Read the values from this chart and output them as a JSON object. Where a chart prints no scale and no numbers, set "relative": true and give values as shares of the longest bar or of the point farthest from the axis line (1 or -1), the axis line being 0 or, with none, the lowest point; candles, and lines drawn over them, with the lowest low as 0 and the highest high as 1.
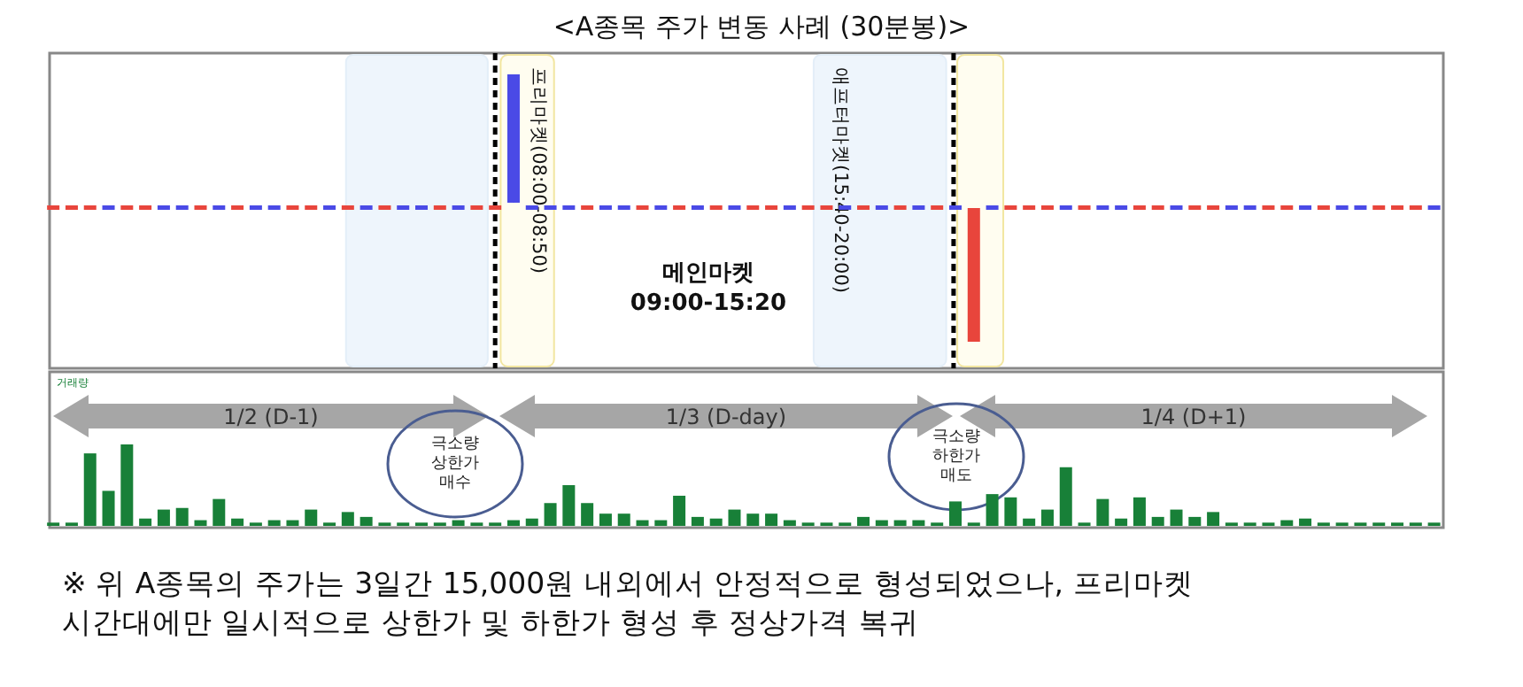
{
  "chart_data": [
    {
      "type": "candlestick",
      "title": "<A종목 주가 변동 사례 (30분봉)>",
      "relative": true,
      "categories": [
        null,
        null,
        null,
        null,
        null,
        null,
        null,
        null,
        null,
        null,
        null,
        null,
        null,
        null,
        null,
        null,
        null,
        null,
        null,
        null,
        null,
        null,
        null,
        null,
        null,
        null,
        null,
        null,
        null,
        null,
        null,
        null,
        null,
        null,
        null,
        null,
        null,
        null,
        null,
        null,
        null,
        null,
        null,
        null,
        null,
        null,
        null,
        null,
        null,
        null,
        null,
        null,
        null,
        null,
        null,
        null,
        null,
        null,
        null,
        null,
        null,
        null,
        null,
        null,
        null,
        null,
        null,
        null,
        null,
        null,
        null,
        null,
        null,
        null,
        null,
        null
      ],
      "ohlc": [
        [
          0.5,
          0.51,
          0.5,
          0.51
        ],
        [
          0.5,
          0.51,
          0.5,
          0.51
        ],
        [
          0.5,
          0.51,
          0.5,
          0.51
        ],
        [
          0.51,
          0.51,
          0.5,
          0.5
        ],
        [
          0.5,
          0.51,
          0.5,
          0.51
        ],
        [
          0.5,
          0.51,
          0.5,
          0.51
        ],
        [
          0.51,
          0.51,
          0.5,
          0.5
        ],
        [
          0.51,
          0.51,
          0.5,
          0.5
        ],
        [
          0.5,
          0.51,
          0.5,
          0.51
        ],
        [
          0.51,
          0.51,
          0.5,
          0.5
        ],
        [
          0.5,
          0.51,
          0.5,
          0.51
        ],
        [
          0.51,
          0.51,
          0.5,
          0.5
        ],
        [
          0.51,
          0.51,
          0.5,
          0.5
        ],
        [
          0.5,
          0.51,
          0.5,
          0.51
        ],
        [
          0.5,
          0.51,
          0.5,
          0.51
        ],
        [
          0.51,
          0.51,
          0.5,
          0.5
        ],
        [
          0.5,
          0.51,
          0.5,
          0.51
        ],
        [
          0.51,
          0.51,
          0.5,
          0.5
        ],
        [
          0.5,
          0.51,
          0.5,
          0.51
        ],
        [
          0.51,
          0.51,
          0.5,
          0.5
        ],
        [
          0.51,
          0.51,
          0.5,
          0.5
        ],
        [
          0.5,
          0.51,
          0.5,
          0.51
        ],
        [
          0.51,
          0.51,
          0.5,
          0.5
        ],
        [
          0.5,
          0.51,
          0.5,
          0.51
        ],
        [
          0.5,
          0.51,
          0.5,
          0.51
        ],
        [
          1,
          1,
          0.52,
          0.52
        ],
        [
          0.51,
          0.51,
          0.5,
          0.5
        ],
        [
          0.51,
          0.51,
          0.5,
          0.5
        ],
        [
          0.51,
          0.51,
          0.5,
          0.5
        ],
        [
          0.5,
          0.51,
          0.5,
          0.51
        ],
        [
          0.51,
          0.51,
          0.5,
          0.5
        ],
        [
          0.51,
          0.51,
          0.5,
          0.5
        ],
        [
          0.5,
          0.51,
          0.5,
          0.51
        ],
        [
          0.51,
          0.51,
          0.5,
          0.5
        ],
        [
          0.5,
          0.51,
          0.5,
          0.51
        ],
        [
          0.51,
          0.51,
          0.5,
          0.5
        ],
        [
          0.5,
          0.51,
          0.5,
          0.51
        ],
        [
          0.51,
          0.51,
          0.5,
          0.5
        ],
        [
          0.5,
          0.51,
          0.5,
          0.51
        ],
        [
          0.5,
          0.51,
          0.5,
          0.51
        ],
        [
          0.51,
          0.51,
          0.5,
          0.5
        ],
        [
          0.5,
          0.51,
          0.5,
          0.51
        ],
        [
          0.5,
          0.51,
          0.5,
          0.51
        ],
        [
          0.51,
          0.51,
          0.5,
          0.5
        ],
        [
          0.5,
          0.51,
          0.5,
          0.51
        ],
        [
          0.51,
          0.51,
          0.5,
          0.5
        ],
        [
          0.5,
          0.51,
          0.5,
          0.51
        ],
        [
          0.51,
          0.51,
          0.5,
          0.5
        ],
        [
          0.5,
          0.51,
          0.5,
          0.51
        ],
        [
          0.51,
          0.51,
          0.5,
          0.5
        ],
        [
          0,
          0.5,
          0,
          0.5
        ],
        [
          0.51,
          0.51,
          0.5,
          0.5
        ],
        [
          0.5,
          0.51,
          0.5,
          0.51
        ],
        [
          0.5,
          0.51,
          0.5,
          0.51
        ],
        [
          0.5,
          0.51,
          0.5,
          0.51
        ],
        [
          0.51,
          0.51,
          0.5,
          0.5
        ],
        [
          0.5,
          0.51,
          0.5,
          0.51
        ],
        [
          0.51,
          0.51,
          0.5,
          0.5
        ],
        [
          0.51,
          0.51,
          0.5,
          0.5
        ],
        [
          0.5,
          0.51,
          0.5,
          0.51
        ],
        [
          0.5,
          0.51,
          0.5,
          0.51
        ],
        [
          0.51,
          0.51,
          0.5,
          0.5
        ],
        [
          0.5,
          0.51,
          0.5,
          0.51
        ],
        [
          0.5,
          0.51,
          0.5,
          0.51
        ],
        [
          0.51,
          0.51,
          0.5,
          0.5
        ],
        [
          0.51,
          0.51,
          0.5,
          0.5
        ],
        [
          0.5,
          0.51,
          0.5,
          0.51
        ],
        [
          0.5,
          0.51,
          0.5,
          0.51
        ],
        [
          0.51,
          0.51,
          0.5,
          0.5
        ],
        [
          0.5,
          0.51,
          0.5,
          0.51
        ],
        [
          0.51,
          0.51,
          0.5,
          0.5
        ],
        [
          0.51,
          0.51,
          0.5,
          0.5
        ],
        [
          0.5,
          0.51,
          0.5,
          0.51
        ],
        [
          0.5,
          0.51,
          0.5,
          0.51
        ],
        [
          0.5,
          0.51,
          0.5,
          0.51
        ],
        [
          0.51,
          0.51,
          0.5,
          0.5
        ]
      ],
      "colors": [
        "#e8453c",
        "#e8453c",
        "#e8453c",
        "#4a4ae6",
        "#e8453c",
        "#e8453c",
        "#4a4ae6",
        "#4a4ae6",
        "#e8453c",
        "#4a4ae6",
        "#e8453c",
        "#4a4ae6",
        "#4a4ae6",
        "#e8453c",
        "#e8453c",
        "#4a4ae6",
        "#e8453c",
        "#4a4ae6",
        "#e8453c",
        "#4a4ae6",
        "#4a4ae6",
        "#e8453c",
        "#4a4ae6",
        "#e8453c",
        "#e8453c",
        "#4a4ae6",
        "#4a4ae6",
        "#4a4ae6",
        "#4a4ae6",
        "#e8453c",
        "#4a4ae6",
        "#4a4ae6",
        "#e8453c",
        "#4a4ae6",
        "#e8453c",
        "#4a4ae6",
        "#e8453c",
        "#4a4ae6",
        "#e8453c",
        "#e8453c",
        "#4a4ae6",
        "#e8453c",
        "#e8453c",
        "#4a4ae6",
        "#e8453c",
        "#4a4ae6",
        "#e8453c",
        "#4a4ae6",
        "#e8453c",
        "#4a4ae6",
        "#e8453c",
        "#4a4ae6",
        "#e8453c",
        "#e8453c",
        "#e8453c",
        "#4a4ae6",
        "#e8453c",
        "#4a4ae6",
        "#4a4ae6",
        "#e8453c",
        "#e8453c",
        "#4a4ae6",
        "#e8453c",
        "#e8453c",
        "#4a4ae6",
        "#4a4ae6",
        "#e8453c",
        "#e8453c",
        "#4a4ae6",
        "#e8453c",
        "#4a4ae6",
        "#4a4ae6",
        "#e8453c",
        "#e8453c",
        "#e8453c",
        "#4a4ae6"
      ],
      "annotations": [
        "메인마켓",
        "09:00-15:20",
        "프리마켓(08:00-08:50)",
        "애프터마켓(15:40-20:00)"
      ]
    },
    {
      "type": "bar",
      "relative": true,
      "color": "#188038",
      "categories": [
        null,
        null,
        null,
        null,
        null,
        null,
        null,
        null,
        null,
        null,
        null,
        null,
        null,
        null,
        null,
        null,
        null,
        null,
        null,
        null,
        null,
        null,
        null,
        null,
        null,
        null,
        null,
        null,
        null,
        null,
        null,
        null,
        null,
        null,
        null,
        null,
        null,
        null,
        null,
        null,
        null,
        null,
        null,
        null,
        null,
        null,
        null,
        null,
        null,
        null,
        null,
        null,
        null,
        null,
        null,
        null,
        null,
        null,
        null,
        null,
        null,
        null,
        null,
        null,
        null,
        null,
        null,
        null,
        null,
        null,
        null,
        null,
        null,
        null,
        null,
        null
      ],
      "values": [
        0.04,
        0.04,
        0.89,
        0.43,
        1.0,
        0.09,
        0.2,
        0.22,
        0.07,
        0.33,
        0.09,
        0.04,
        0.07,
        0.07,
        0.2,
        0.04,
        0.17,
        0.11,
        0.04,
        0.04,
        0.04,
        0.04,
        0.07,
        0.04,
        0.04,
        0.07,
        0.09,
        0.28,
        0.5,
        0.28,
        0.15,
        0.15,
        0.07,
        0.07,
        0.37,
        0.11,
        0.09,
        0.2,
        0.15,
        0.15,
        0.07,
        0.04,
        0.04,
        0.04,
        0.11,
        0.07,
        0.07,
        0.07,
        0.04,
        0.3,
        0.04,
        0.39,
        0.35,
        0.09,
        0.2,
        0.72,
        0.04,
        0.33,
        0.09,
        0.35,
        0.11,
        0.2,
        0.11,
        0.17,
        0.04,
        0.04,
        0.04,
        0.07,
        0.09,
        0.04,
        0.04,
        0.04,
        0.04,
        0.04,
        0.04,
        0.04
      ],
      "annotations": [
        "거래량",
        "1/2 (D-1)",
        "1/3 (D-day)",
        "1/4 (D+1)",
        "극소량\n상한가\n매수",
        "극소량\n하한가\n매도",
        "※ 위 A종목의 주가는 3일간 15,000원 내외에서 안정적으로 형성되었으나, 프리마켓\n시간대에만 일시적으로 상한가 및 하한가 형성 후 정상가격 복귀"
      ]
    }
  ]
}
